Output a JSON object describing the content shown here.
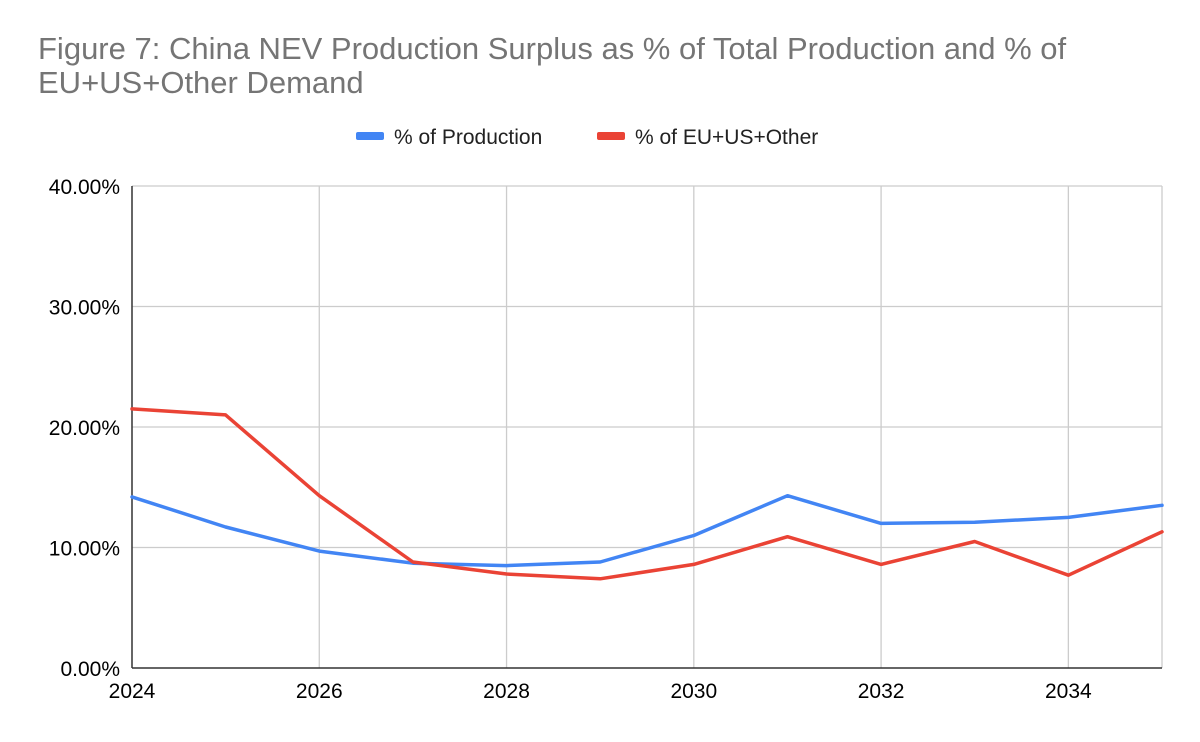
{
  "chart_data": {
    "type": "line",
    "title": "Figure 7: China NEV Production Surplus as % of Total Production and % of EU+US+Other Demand",
    "x": [
      2024,
      2025,
      2026,
      2027,
      2028,
      2029,
      2030,
      2031,
      2032,
      2033,
      2034,
      2035
    ],
    "xlim": [
      2024,
      2035
    ],
    "xticks": [
      2024,
      2026,
      2028,
      2030,
      2032,
      2034
    ],
    "xtick_labels": [
      "2024",
      "2026",
      "2028",
      "2030",
      "2032",
      "2034"
    ],
    "ylim": [
      0,
      40
    ],
    "yticks": [
      0,
      10,
      20,
      30,
      40
    ],
    "ytick_labels": [
      "0.00%",
      "10.00%",
      "20.00%",
      "30.00%",
      "40.00%"
    ],
    "grid": true,
    "legend_position": "top-center",
    "series": [
      {
        "name": "% of Production",
        "color": "#4285F4",
        "values": [
          14.2,
          11.7,
          9.7,
          8.7,
          8.5,
          8.8,
          11.0,
          14.3,
          12.0,
          12.1,
          12.5,
          13.5
        ]
      },
      {
        "name": "% of EU+US+Other",
        "color": "#EA4335",
        "values": [
          21.5,
          21.0,
          14.3,
          8.8,
          7.8,
          7.4,
          8.6,
          10.9,
          8.6,
          10.5,
          7.7,
          11.3
        ]
      }
    ]
  }
}
